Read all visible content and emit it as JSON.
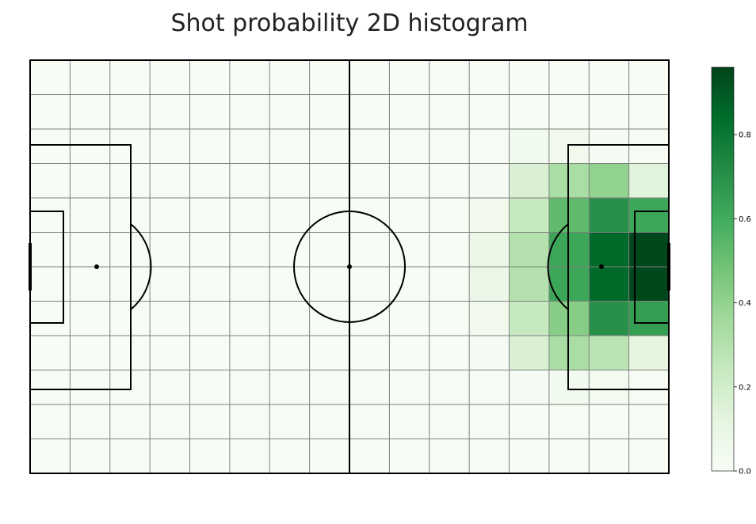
{
  "chart_data": {
    "type": "heatmap",
    "title": "Shot probability 2D histogram",
    "xlabel": "",
    "ylabel": "",
    "grid": {
      "columns": 16,
      "rows": 12
    },
    "values": [
      [
        0,
        0,
        0,
        0,
        0,
        0,
        0,
        0,
        0,
        0,
        0,
        0,
        0,
        0,
        0,
        0
      ],
      [
        0,
        0,
        0,
        0,
        0,
        0,
        0,
        0,
        0,
        0,
        0,
        0,
        0,
        0,
        0,
        0
      ],
      [
        0,
        0,
        0,
        0,
        0,
        0,
        0,
        0,
        0,
        0,
        0,
        0.01,
        0.04,
        0.05,
        0.02,
        0.01
      ],
      [
        0,
        0,
        0,
        0,
        0,
        0,
        0,
        0,
        0,
        0,
        0,
        0.02,
        0.17,
        0.33,
        0.4,
        0.14
      ],
      [
        0,
        0,
        0,
        0,
        0,
        0,
        0,
        0,
        0,
        0,
        0,
        0.05,
        0.24,
        0.53,
        0.7,
        0.62
      ],
      [
        0,
        0,
        0,
        0,
        0,
        0,
        0,
        0,
        0,
        0,
        0,
        0.08,
        0.3,
        0.62,
        0.85,
        0.95
      ],
      [
        0,
        0,
        0,
        0,
        0,
        0,
        0,
        0,
        0,
        0,
        0,
        0.08,
        0.3,
        0.62,
        0.85,
        0.95
      ],
      [
        0,
        0,
        0,
        0,
        0,
        0,
        0,
        0,
        0,
        0,
        0,
        0.05,
        0.24,
        0.43,
        0.7,
        0.65
      ],
      [
        0,
        0,
        0,
        0,
        0,
        0,
        0,
        0,
        0,
        0,
        0,
        0.02,
        0.17,
        0.33,
        0.28,
        0.12
      ],
      [
        0,
        0,
        0,
        0,
        0,
        0,
        0,
        0,
        0,
        0,
        0,
        0.01,
        0.02,
        0.04,
        0.03,
        0.01
      ],
      [
        0,
        0,
        0,
        0,
        0,
        0,
        0,
        0,
        0,
        0,
        0,
        0,
        0,
        0,
        0,
        0
      ],
      [
        0,
        0,
        0,
        0,
        0,
        0,
        0,
        0,
        0,
        0,
        0,
        0,
        0,
        0,
        0,
        0
      ]
    ],
    "colormap": "Greens",
    "colors": [
      "#f7fcf5",
      "#e5f5e0",
      "#c7e9c0",
      "#a1d99b",
      "#74c476",
      "#41ab5d",
      "#238b45",
      "#006d2c",
      "#00441b"
    ],
    "vmin": 0,
    "vmax": 0.96,
    "colorbar": {
      "ticks": [
        0.0,
        0.2,
        0.4,
        0.6,
        0.8
      ],
      "tick_labels": [
        "0.0",
        "0.2",
        "0.4",
        "0.6",
        "0.8"
      ],
      "placement": "right"
    },
    "pitch": {
      "line_color": "#000000",
      "grid_line_color": "#808080"
    }
  }
}
